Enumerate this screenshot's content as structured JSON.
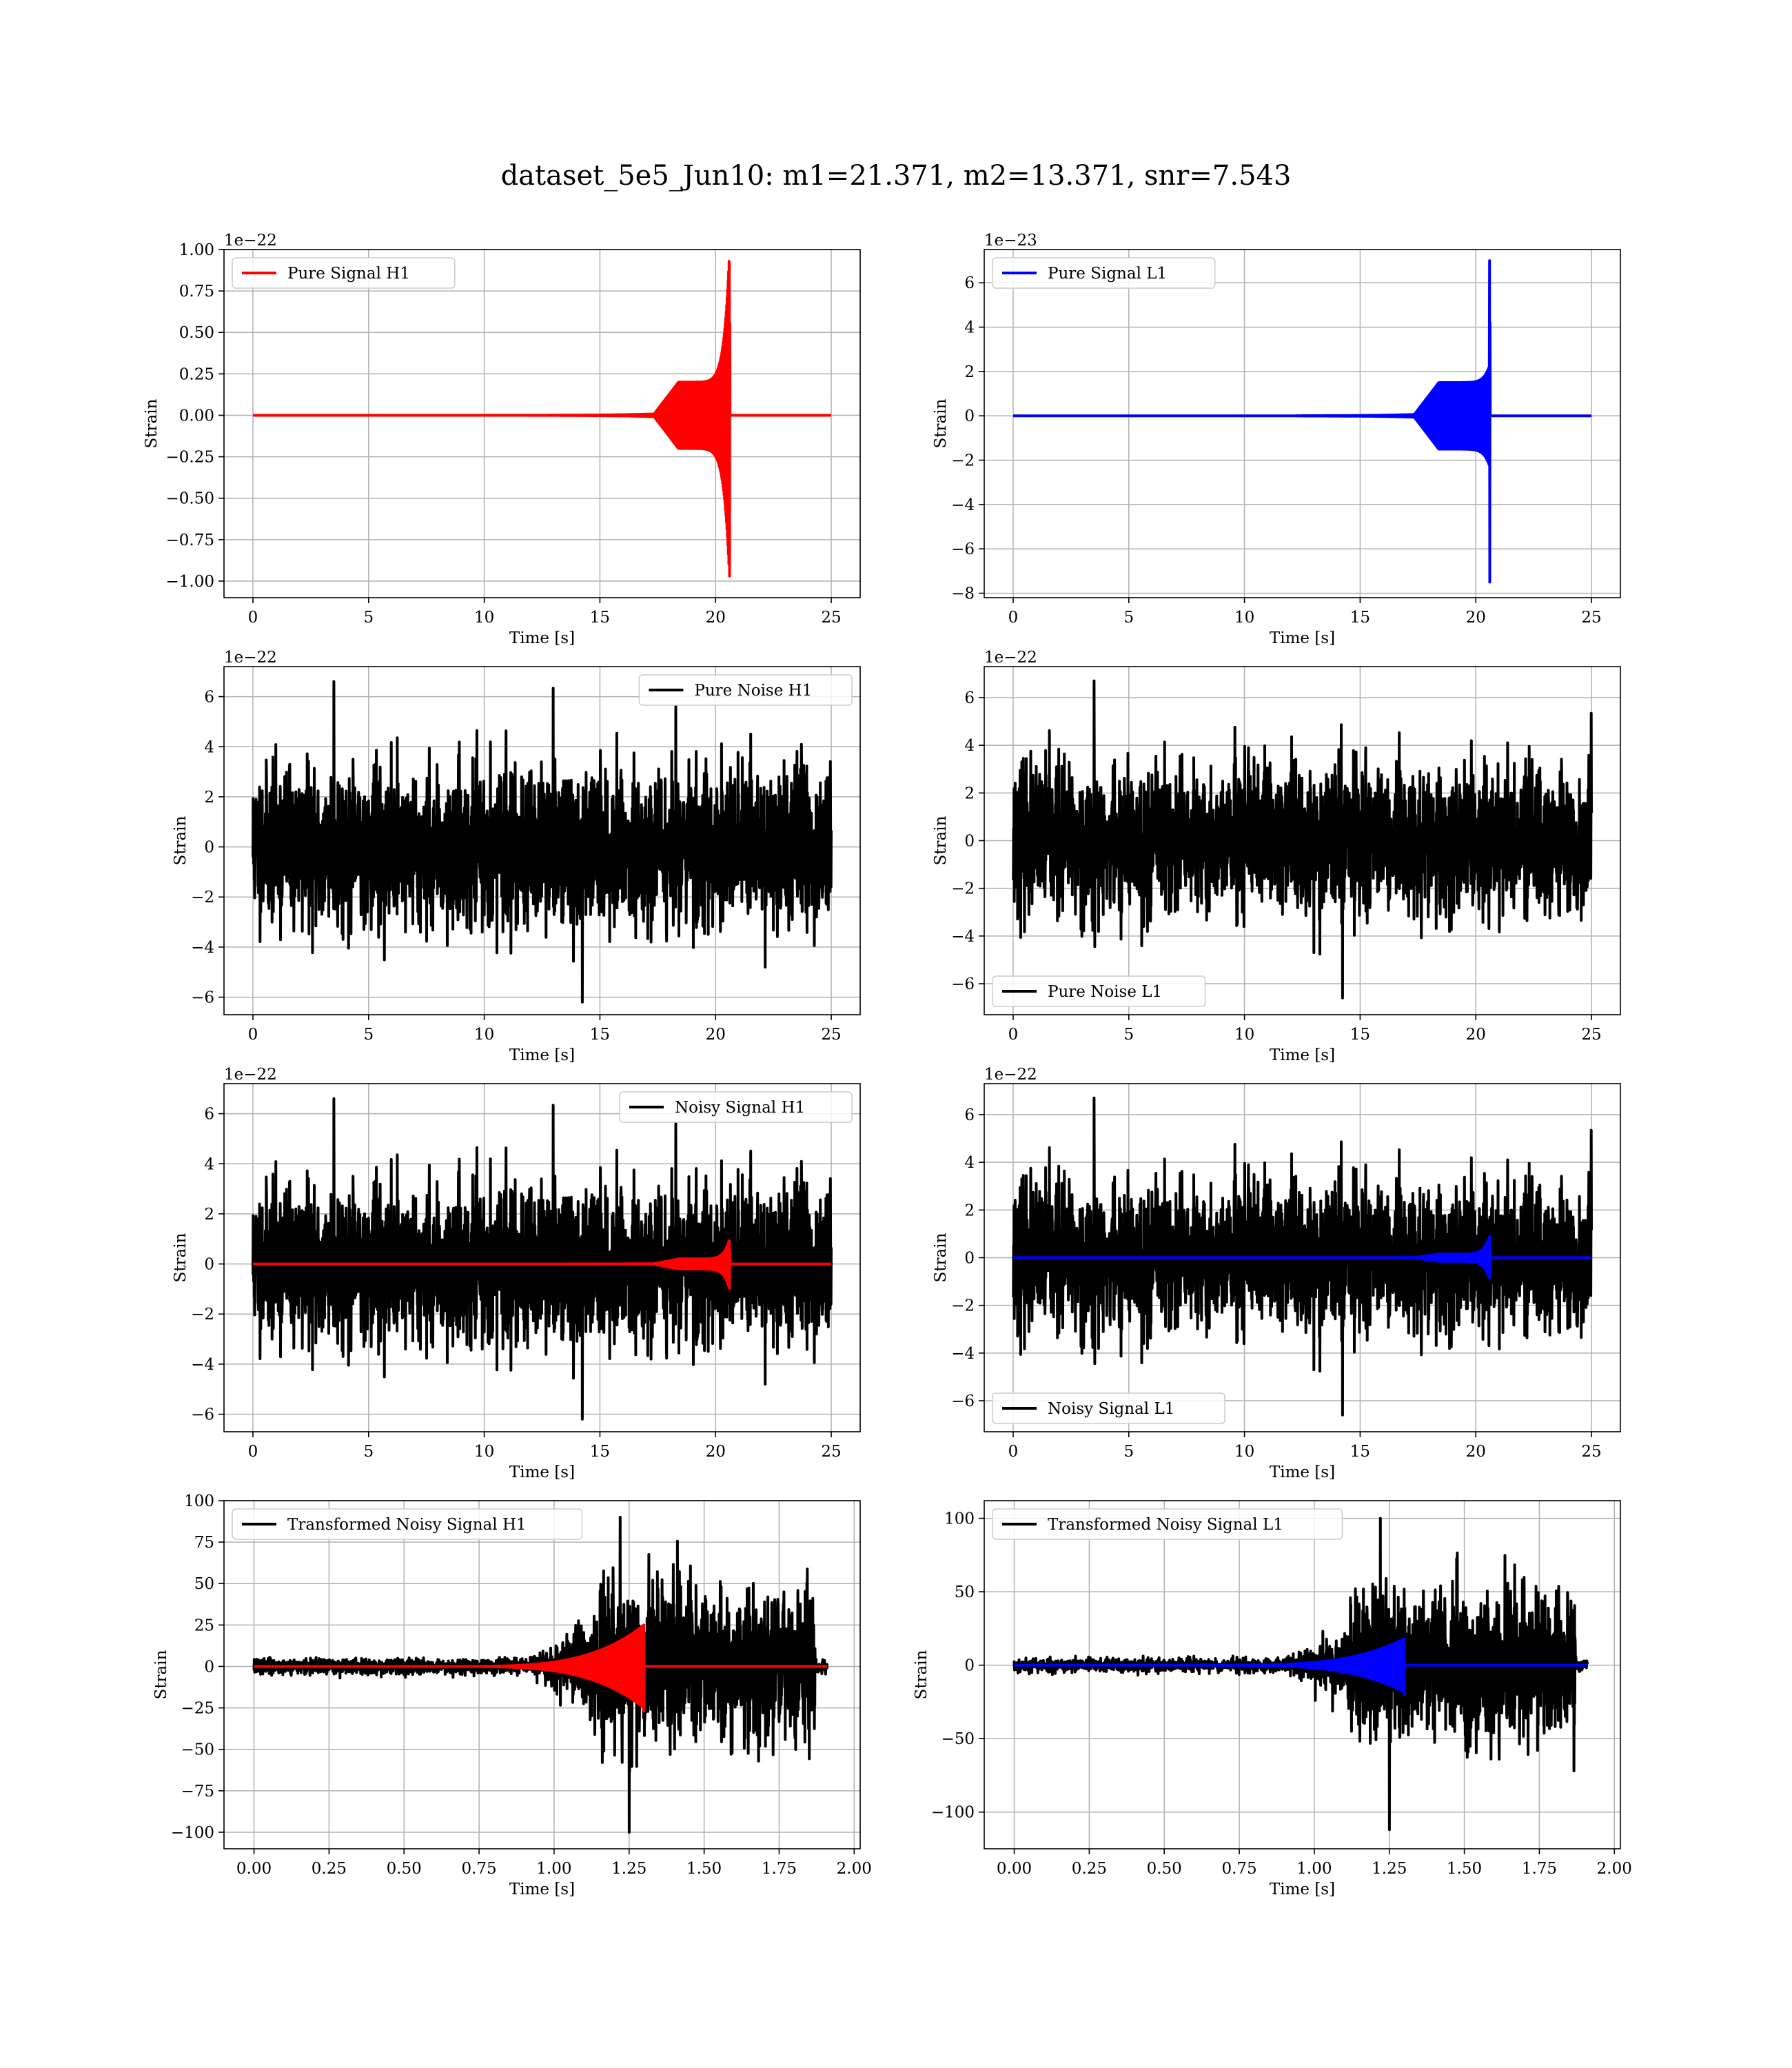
{
  "figure": {
    "title": "dataset_5e5_Jun10: m1=21.371, m2=13.371, snr=7.543"
  },
  "colors": {
    "h1_signal": "#ff0000",
    "l1_signal": "#0000ff",
    "noise": "#000000",
    "grid": "#b0b0b0"
  },
  "chart_data": [
    {
      "id": "pure-signal-h1",
      "type": "line",
      "xlabel": "Time [s]",
      "ylabel": "Strain",
      "offset_text": "1e−22",
      "xlim": [
        -1.25,
        26.25
      ],
      "ylim": [
        -1.1,
        1.0
      ],
      "xticks": [
        0,
        5,
        10,
        15,
        20,
        25
      ],
      "xtick_labels": [
        "0",
        "5",
        "10",
        "15",
        "20",
        "25"
      ],
      "yticks": [
        -1.0,
        -0.75,
        -0.5,
        -0.25,
        0.0,
        0.25,
        0.5,
        0.75,
        1.0
      ],
      "ytick_labels": [
        "−1.00",
        "−0.75",
        "−0.50",
        "−0.25",
        "0.00",
        "0.25",
        "0.50",
        "0.75",
        "1.00"
      ],
      "legend": "upper left",
      "grid": true,
      "series": [
        {
          "name": "Pure Signal H1",
          "color": "#ff0000",
          "kind": "chirp",
          "x_end": 25,
          "t_start": 17.3,
          "t_merge": 20.6,
          "amp_plateau": 0.2,
          "peak_pos": 0.92,
          "peak_neg": -0.97
        }
      ]
    },
    {
      "id": "pure-signal-l1",
      "type": "line",
      "xlabel": "Time [s]",
      "ylabel": "Strain",
      "offset_text": "1e−23",
      "xlim": [
        -1.25,
        26.25
      ],
      "ylim": [
        -8.2,
        7.5
      ],
      "xticks": [
        0,
        5,
        10,
        15,
        20,
        25
      ],
      "xtick_labels": [
        "0",
        "5",
        "10",
        "15",
        "20",
        "25"
      ],
      "yticks": [
        -8,
        -6,
        -4,
        -2,
        0,
        2,
        4,
        6
      ],
      "ytick_labels": [
        "−8",
        "−6",
        "−4",
        "−2",
        "0",
        "2",
        "4",
        "6"
      ],
      "legend": "upper left",
      "grid": true,
      "series": [
        {
          "name": "Pure Signal L1",
          "color": "#0000ff",
          "kind": "chirp",
          "x_end": 25,
          "t_start": 17.3,
          "t_merge": 20.6,
          "amp_plateau": 1.5,
          "peak_pos": 7.0,
          "peak_neg": -7.5
        }
      ]
    },
    {
      "id": "pure-noise-h1",
      "type": "line",
      "xlabel": "Time [s]",
      "ylabel": "Strain",
      "offset_text": "1e−22",
      "xlim": [
        -1.25,
        26.25
      ],
      "ylim": [
        -6.7,
        7.2
      ],
      "xticks": [
        0,
        5,
        10,
        15,
        20,
        25
      ],
      "xtick_labels": [
        "0",
        "5",
        "10",
        "15",
        "20",
        "25"
      ],
      "yticks": [
        -6,
        -4,
        -2,
        0,
        2,
        4,
        6
      ],
      "ytick_labels": [
        "−6",
        "−4",
        "−2",
        "0",
        "2",
        "4",
        "6"
      ],
      "legend": "upper right",
      "grid": true,
      "series": [
        {
          "name": "Pure Noise H1",
          "color": "#000000",
          "kind": "noise",
          "x_end": 25,
          "sigma": 1.5,
          "max": 6.6,
          "min": -6.2,
          "seed": 11
        }
      ]
    },
    {
      "id": "pure-noise-l1",
      "type": "line",
      "xlabel": "Time [s]",
      "ylabel": "Strain",
      "offset_text": "1e−22",
      "xlim": [
        -1.25,
        26.25
      ],
      "ylim": [
        -7.3,
        7.3
      ],
      "xticks": [
        0,
        5,
        10,
        15,
        20,
        25
      ],
      "xtick_labels": [
        "0",
        "5",
        "10",
        "15",
        "20",
        "25"
      ],
      "yticks": [
        -6,
        -4,
        -2,
        0,
        2,
        4,
        6
      ],
      "ytick_labels": [
        "−6",
        "−4",
        "−2",
        "0",
        "2",
        "4",
        "6"
      ],
      "legend": "lower left",
      "grid": true,
      "series": [
        {
          "name": "Pure Noise L1",
          "color": "#000000",
          "kind": "noise",
          "x_end": 25,
          "sigma": 1.5,
          "max": 6.7,
          "min": -6.6,
          "seed": 23
        }
      ]
    },
    {
      "id": "noisy-signal-h1",
      "type": "line",
      "xlabel": "Time [s]",
      "ylabel": "Strain",
      "offset_text": "1e−22",
      "xlim": [
        -1.25,
        26.25
      ],
      "ylim": [
        -6.7,
        7.2
      ],
      "xticks": [
        0,
        5,
        10,
        15,
        20,
        25
      ],
      "xtick_labels": [
        "0",
        "5",
        "10",
        "15",
        "20",
        "25"
      ],
      "yticks": [
        -6,
        -4,
        -2,
        0,
        2,
        4,
        6
      ],
      "ytick_labels": [
        "−6",
        "−4",
        "−2",
        "0",
        "2",
        "4",
        "6"
      ],
      "legend": "upper right",
      "grid": true,
      "series": [
        {
          "name": "Noisy Signal H1",
          "color": "#000000",
          "kind": "noise",
          "x_end": 25,
          "sigma": 1.5,
          "max": 6.6,
          "min": -6.2,
          "seed": 11
        },
        {
          "name": "",
          "color": "#ff0000",
          "kind": "chirp",
          "x_end": 25,
          "t_start": 17.3,
          "t_merge": 20.6,
          "amp_plateau": 0.2,
          "peak_pos": 0.92,
          "peak_neg": -0.97
        }
      ]
    },
    {
      "id": "noisy-signal-l1",
      "type": "line",
      "xlabel": "Time [s]",
      "ylabel": "Strain",
      "offset_text": "1e−22",
      "xlim": [
        -1.25,
        26.25
      ],
      "ylim": [
        -7.3,
        7.3
      ],
      "xticks": [
        0,
        5,
        10,
        15,
        20,
        25
      ],
      "xtick_labels": [
        "0",
        "5",
        "10",
        "15",
        "20",
        "25"
      ],
      "yticks": [
        -6,
        -4,
        -2,
        0,
        2,
        4,
        6
      ],
      "ytick_labels": [
        "−6",
        "−4",
        "−2",
        "0",
        "2",
        "4",
        "6"
      ],
      "legend": "lower left",
      "grid": true,
      "series": [
        {
          "name": "Noisy Signal L1",
          "color": "#000000",
          "kind": "noise",
          "x_end": 25,
          "sigma": 1.5,
          "max": 6.7,
          "min": -6.6,
          "seed": 23
        },
        {
          "name": "",
          "color": "#0000ff",
          "kind": "chirp",
          "x_end": 25,
          "t_start": 17.3,
          "t_merge": 20.6,
          "amp_plateau": 0.15,
          "peak_pos": 0.7,
          "peak_neg": -0.75
        }
      ]
    },
    {
      "id": "transformed-noisy-signal-h1",
      "type": "line",
      "xlabel": "Time [s]",
      "ylabel": "Strain",
      "offset_text": "",
      "xlim": [
        -0.1,
        2.02
      ],
      "ylim": [
        -110,
        100
      ],
      "xticks": [
        0.0,
        0.25,
        0.5,
        0.75,
        1.0,
        1.25,
        1.5,
        1.75,
        2.0
      ],
      "xtick_labels": [
        "0.00",
        "0.25",
        "0.50",
        "0.75",
        "1.00",
        "1.25",
        "1.50",
        "1.75",
        "2.00"
      ],
      "yticks": [
        -100,
        -75,
        -50,
        -25,
        0,
        25,
        50,
        75,
        100
      ],
      "ytick_labels": [
        "−100",
        "−75",
        "−50",
        "−25",
        "0",
        "25",
        "50",
        "75",
        "100"
      ],
      "legend": "upper left",
      "grid": true,
      "series": [
        {
          "name": "Transformed Noisy Signal H1",
          "color": "#000000",
          "kind": "whitened",
          "x_end": 1.91,
          "t_rise": 1.12,
          "t_end": 1.87,
          "amp_lo": 5,
          "amp_hi": 50,
          "max": 90,
          "min": -100,
          "seed": 37
        },
        {
          "name": "",
          "color": "#ff0000",
          "kind": "whitened_chirp",
          "x_end": 1.91,
          "t_merge": 1.3,
          "peak_pos": 25,
          "peak_neg": -27
        }
      ]
    },
    {
      "id": "transformed-noisy-signal-l1",
      "type": "line",
      "xlabel": "Time [s]",
      "ylabel": "Strain",
      "offset_text": "",
      "xlim": [
        -0.1,
        2.02
      ],
      "ylim": [
        -125,
        112
      ],
      "xticks": [
        0.0,
        0.25,
        0.5,
        0.75,
        1.0,
        1.25,
        1.5,
        1.75,
        2.0
      ],
      "xtick_labels": [
        "0.00",
        "0.25",
        "0.50",
        "0.75",
        "1.00",
        "1.25",
        "1.50",
        "1.75",
        "2.00"
      ],
      "yticks": [
        -100,
        -50,
        0,
        50,
        100
      ],
      "ytick_labels": [
        "−100",
        "−50",
        "0",
        "50",
        "100"
      ],
      "legend": "upper left",
      "grid": true,
      "series": [
        {
          "name": "Transformed Noisy Signal L1",
          "color": "#000000",
          "kind": "whitened",
          "x_end": 1.91,
          "t_rise": 1.12,
          "t_end": 1.87,
          "amp_lo": 5,
          "amp_hi": 55,
          "max": 100,
          "min": -112,
          "seed": 53
        },
        {
          "name": "",
          "color": "#0000ff",
          "kind": "whitened_chirp",
          "x_end": 1.91,
          "t_merge": 1.3,
          "peak_pos": 18,
          "peak_neg": -20
        }
      ]
    }
  ]
}
